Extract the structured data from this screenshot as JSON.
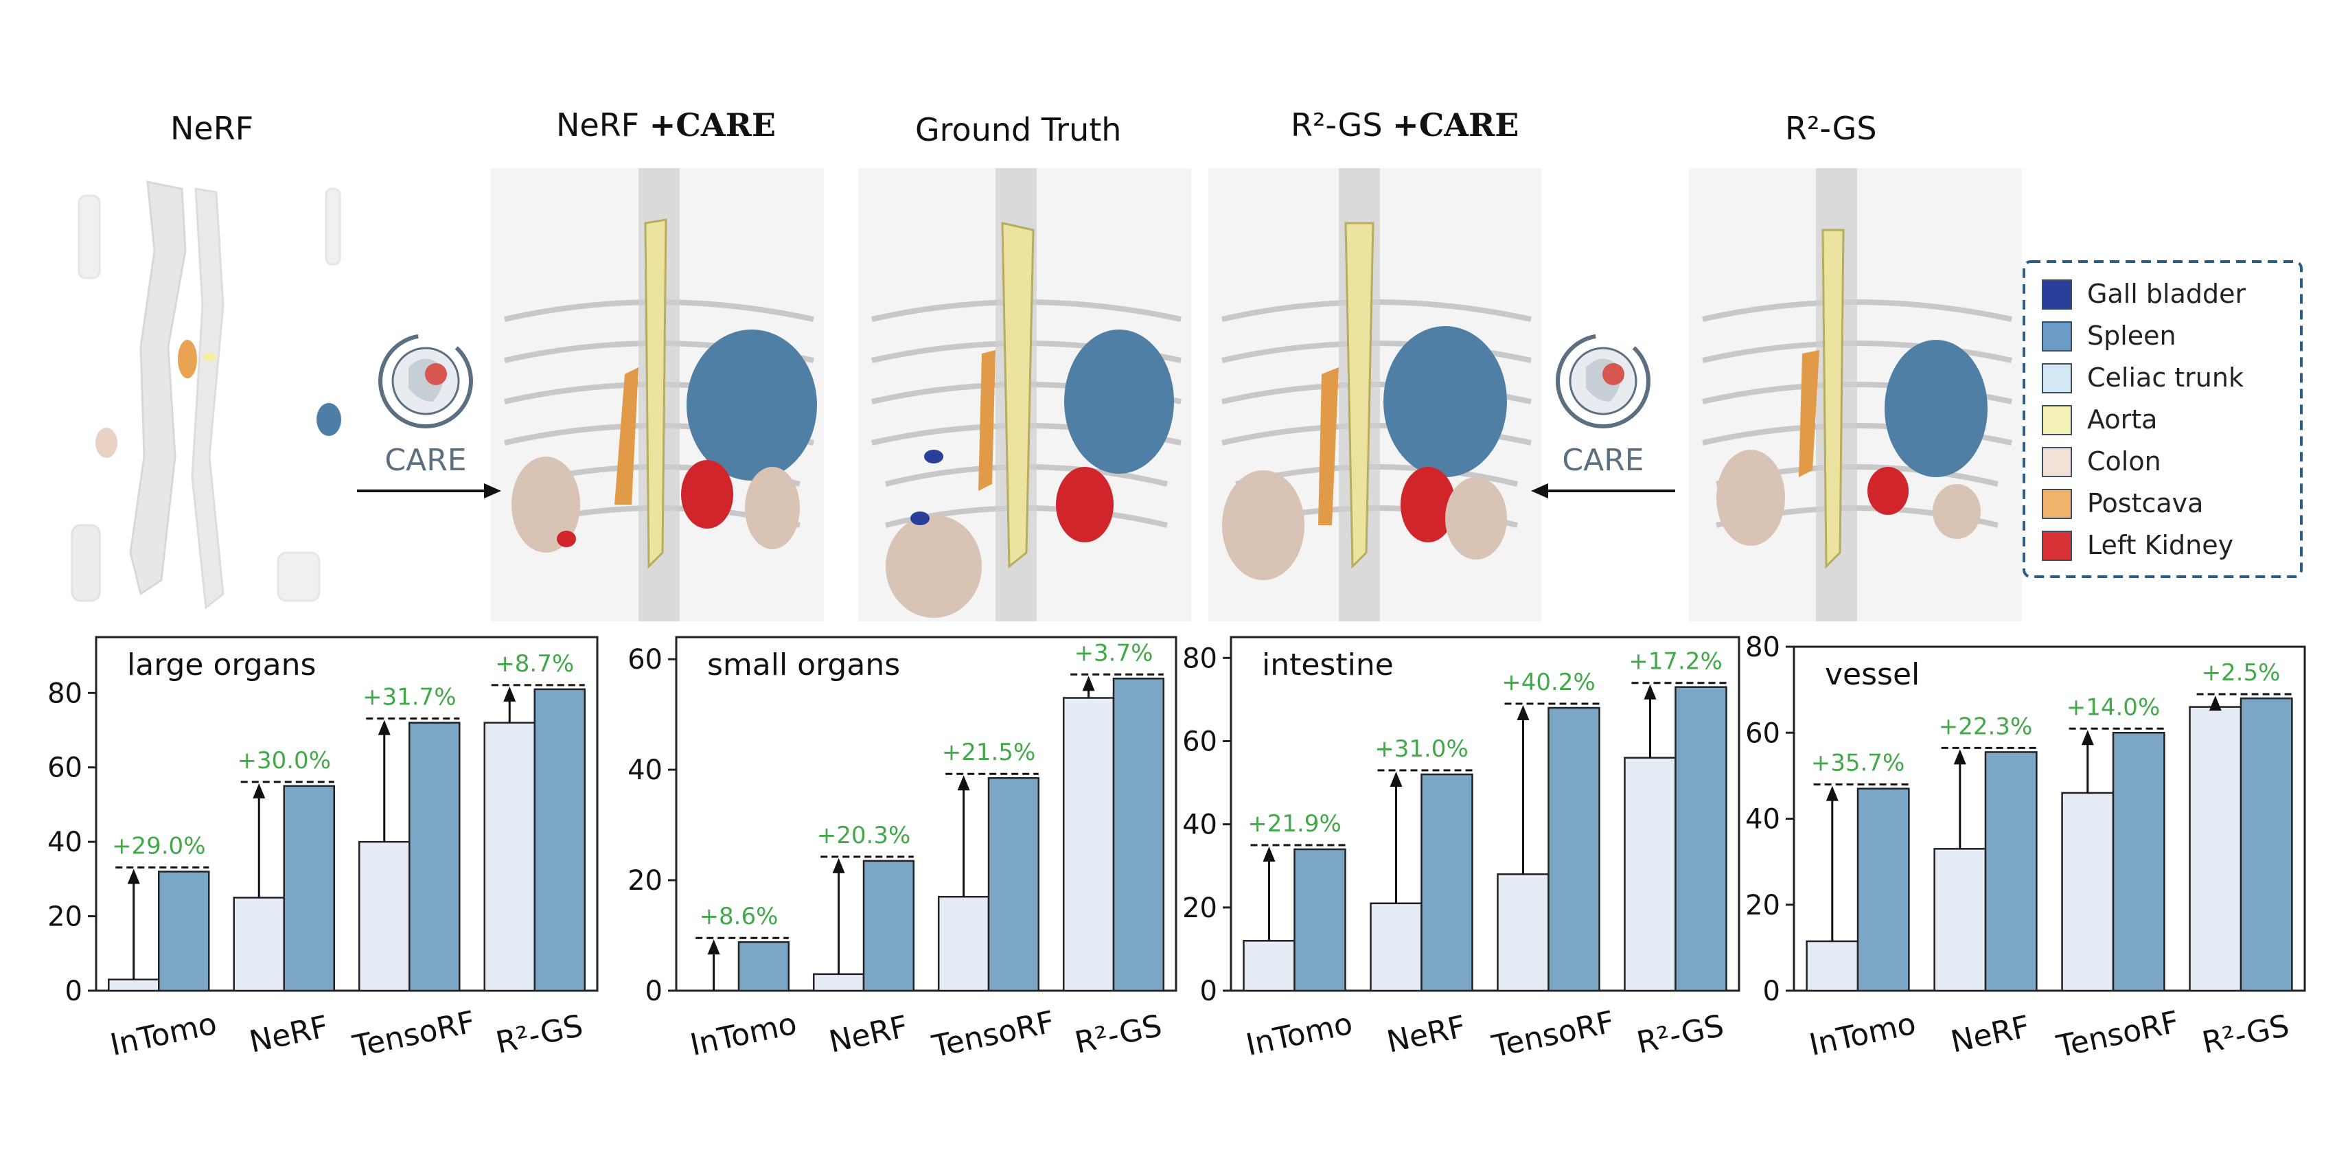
{
  "figure": {
    "column_titles": [
      {
        "name": "NeRF",
        "suffix": ""
      },
      {
        "name": "NeRF",
        "suffix": "+CARE"
      },
      {
        "name": "Ground Truth",
        "suffix": ""
      },
      {
        "name": "R²-GS",
        "suffix": "+CARE"
      },
      {
        "name": "R²-GS",
        "suffix": ""
      }
    ],
    "logo_text": "CARE",
    "legend": [
      {
        "label": "Gall bladder",
        "color": "#2a3f9a"
      },
      {
        "label": "Spleen",
        "color": "#6c9cc8"
      },
      {
        "label": "Celiac trunk",
        "color": "#d4e8f4"
      },
      {
        "label": "Aorta",
        "color": "#f7f3b8"
      },
      {
        "label": "Colon",
        "color": "#f3e1d8"
      },
      {
        "label": "Postcava",
        "color": "#f0b46e"
      },
      {
        "label": "Left Kidney",
        "color": "#d93236"
      }
    ]
  },
  "chart_data": [
    {
      "type": "bar",
      "title": "large organs",
      "categories": [
        "InTomo",
        "NeRF",
        "TensoRF",
        "R²-GS"
      ],
      "series": [
        {
          "name": "",
          "values": [
            3,
            25,
            40,
            72
          ],
          "color": "#e6ecf6"
        },
        {
          "name": "",
          "values": [
            32,
            55,
            72,
            81
          ],
          "color": "#7ba6c6"
        }
      ],
      "improvements": [
        "+29.0%",
        "+30.0%",
        "+31.7%",
        "+8.7%"
      ],
      "yticks": [
        0,
        20,
        40,
        60,
        80
      ],
      "ylim": [
        0,
        95
      ]
    },
    {
      "type": "bar",
      "title": "small organs",
      "categories": [
        "InTomo",
        "NeRF",
        "TensoRF",
        "R²-GS"
      ],
      "series": [
        {
          "name": "",
          "values": [
            0,
            3,
            17,
            53
          ],
          "color": "#e6ecf6"
        },
        {
          "name": "",
          "values": [
            8.8,
            23.5,
            38.5,
            56.5
          ],
          "color": "#7ba6c6"
        }
      ],
      "improvements": [
        "+8.6%",
        "+20.3%",
        "+21.5%",
        "+3.7%"
      ],
      "yticks": [
        0,
        20,
        40,
        60
      ],
      "ylim": [
        0,
        64
      ]
    },
    {
      "type": "bar",
      "title": "intestine",
      "categories": [
        "InTomo",
        "NeRF",
        "TensoRF",
        "R²-GS"
      ],
      "series": [
        {
          "name": "",
          "values": [
            12,
            21,
            28,
            56
          ],
          "color": "#e6ecf6"
        },
        {
          "name": "",
          "values": [
            34,
            52,
            68,
            73
          ],
          "color": "#7ba6c6"
        }
      ],
      "improvements": [
        "+21.9%",
        "+31.0%",
        "+40.2%",
        "+17.2%"
      ],
      "yticks": [
        0,
        20,
        40,
        60,
        80
      ],
      "ylim": [
        0,
        85
      ]
    },
    {
      "type": "bar",
      "title": "vessel",
      "categories": [
        "InTomo",
        "NeRF",
        "TensoRF",
        "R²-GS"
      ],
      "series": [
        {
          "name": "",
          "values": [
            11.5,
            33,
            46,
            66
          ],
          "color": "#e6ecf6"
        },
        {
          "name": "",
          "values": [
            47,
            55.5,
            60,
            68
          ],
          "color": "#7ba6c6"
        }
      ],
      "improvements": [
        "+35.7%",
        "+22.3%",
        "+14.0%",
        "+2.5%"
      ],
      "yticks": [
        0,
        20,
        40,
        60,
        80
      ],
      "ylim": [
        0,
        80
      ]
    }
  ]
}
